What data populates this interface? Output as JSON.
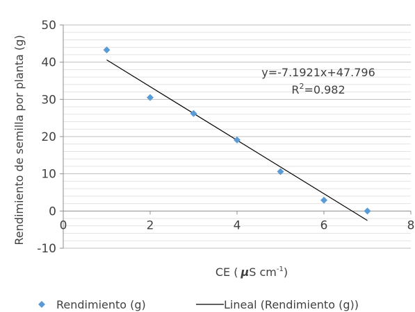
{
  "chart_data": {
    "type": "scatter",
    "xlabel_main": "CE (",
    "xlabel_mu": "μ",
    "xlabel_unit": "S cm",
    "xlabel_sup": "-1",
    "xlabel_end": ")",
    "ylabel": "Rendimiento de semilla por planta (g)",
    "xlim": [
      0,
      8
    ],
    "ylim": [
      -10,
      50
    ],
    "x_ticks": [
      "0",
      "2",
      "4",
      "6",
      "8"
    ],
    "y_ticks": [
      "-10",
      "0",
      "10",
      "20",
      "30",
      "40",
      "50"
    ],
    "grid": true,
    "series": [
      {
        "name": "Rendimiento (g)",
        "marker": "diamond",
        "color": "#5B9BD5",
        "x": [
          1,
          2,
          3,
          4,
          5,
          6,
          7
        ],
        "y": [
          43.3,
          30.5,
          26.2,
          19.1,
          10.6,
          2.9,
          0.0
        ]
      }
    ],
    "trendline": {
      "name": "Lineal (Rendimiento (g))",
      "color": "#000000",
      "slope": -7.1921,
      "intercept": 47.796,
      "x_range": [
        1,
        7
      ],
      "equation": "y=-7.1921x+47.796",
      "r2_prefix": "R",
      "r2_sup": "2",
      "r2_value": "=0.982"
    },
    "legend_position": "bottom"
  }
}
